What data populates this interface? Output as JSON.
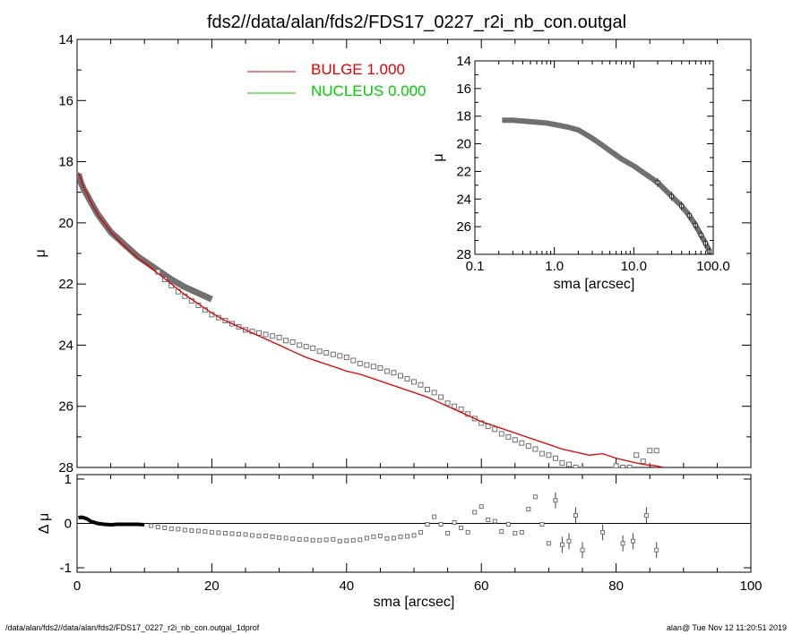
{
  "title": "fds2//data/alan/fds2/FDS17_0227_r2i_nb_con.outgal",
  "footer": {
    "left": "/data/alan/fds2//data/alan/fds2/FDS17_0227_r2i_nb_con.outgal_1dprof",
    "right": "alan@  Tue Nov 12 11:20:51 2019"
  },
  "colors": {
    "bulge": "#e00000",
    "nucleus": "#00cc00",
    "points": "#707070"
  },
  "chart_data": [
    {
      "id": "main",
      "type": "scatter",
      "xlabel": "",
      "ylabel": "μ",
      "xlim": [
        0,
        100
      ],
      "ylim": [
        28,
        14
      ],
      "x_ticks": [
        0,
        20,
        40,
        60,
        80,
        100
      ],
      "y_ticks": [
        14,
        16,
        18,
        20,
        22,
        24,
        26,
        28
      ],
      "y_tick_labels": [
        "14",
        "16",
        "18",
        "20",
        "22",
        "24",
        "26",
        "28"
      ],
      "legend": [
        {
          "name": "BULGE",
          "value": "1.000",
          "color": "#e00000"
        },
        {
          "name": "NUCLEUS",
          "value": "0.000",
          "color": "#00cc00"
        }
      ],
      "legend_position": "top-center",
      "series": [
        {
          "type": "line",
          "color": "#707070",
          "x": [
            0.2,
            0.6,
            1,
            1.5,
            2,
            3,
            4,
            5,
            6,
            7,
            8,
            9,
            10,
            12,
            14,
            16,
            18,
            20
          ],
          "y": [
            18.4,
            18.7,
            18.9,
            19.1,
            19.3,
            19.7,
            20.0,
            20.3,
            20.5,
            20.7,
            20.9,
            21.1,
            21.25,
            21.55,
            21.85,
            22.1,
            22.3,
            22.5
          ]
        },
        {
          "type": "points",
          "color": "#707070",
          "x": [
            12,
            13,
            14,
            15,
            16,
            17,
            18,
            19,
            20,
            21,
            22,
            23,
            24,
            25,
            26,
            27,
            28,
            29,
            30,
            31,
            32,
            33,
            34,
            35,
            36,
            37,
            38,
            39,
            40,
            41,
            42,
            43,
            44,
            45,
            46,
            47,
            48,
            49,
            50,
            51,
            52,
            53,
            54,
            55,
            56,
            57,
            58,
            59,
            60,
            61,
            62,
            63,
            64,
            65,
            66,
            67,
            68,
            69,
            70,
            71,
            72,
            73,
            74,
            75,
            76,
            77,
            78,
            79,
            80,
            81,
            82,
            83,
            84,
            85,
            86
          ],
          "y": [
            21.6,
            21.85,
            22.05,
            22.25,
            22.4,
            22.55,
            22.7,
            22.85,
            23.0,
            23.1,
            23.2,
            23.3,
            23.4,
            23.5,
            23.55,
            23.6,
            23.65,
            23.7,
            23.75,
            23.85,
            23.9,
            24.0,
            24.05,
            24.1,
            24.2,
            24.25,
            24.3,
            24.35,
            24.4,
            24.5,
            24.6,
            24.65,
            24.7,
            24.75,
            24.85,
            24.9,
            25.0,
            25.1,
            25.2,
            25.3,
            25.45,
            25.55,
            25.7,
            25.9,
            26.0,
            26.1,
            26.25,
            26.4,
            26.55,
            26.65,
            26.75,
            26.9,
            27.0,
            27.1,
            27.2,
            27.3,
            27.4,
            27.55,
            27.6,
            27.7,
            27.85,
            27.9,
            28.0,
            28.05,
            28.1,
            28.1,
            28.2,
            28.25,
            27.95,
            28.0,
            28.0,
            27.6,
            27.8,
            27.45,
            27.45
          ],
          "note_markers": true
        },
        {
          "name": "BULGE",
          "type": "line",
          "color": "#e00000",
          "x": [
            0.2,
            0.6,
            1,
            1.5,
            2,
            3,
            4,
            5,
            6,
            7,
            8,
            9,
            10,
            12,
            14,
            16,
            18,
            20,
            22,
            24,
            26,
            28,
            30,
            32,
            34,
            36,
            38,
            40,
            42,
            44,
            46,
            48,
            50,
            52,
            54,
            56,
            58,
            60,
            62,
            64,
            66,
            68,
            70,
            72,
            74,
            76,
            78,
            80,
            82,
            84,
            86,
            87
          ],
          "y": [
            18.35,
            18.6,
            18.85,
            19.05,
            19.3,
            19.7,
            20.0,
            20.3,
            20.55,
            20.75,
            20.95,
            21.15,
            21.3,
            21.65,
            22.0,
            22.35,
            22.65,
            22.95,
            23.2,
            23.4,
            23.6,
            23.8,
            24.0,
            24.2,
            24.4,
            24.55,
            24.7,
            24.85,
            24.95,
            25.1,
            25.25,
            25.4,
            25.55,
            25.7,
            25.9,
            26.1,
            26.3,
            26.5,
            26.65,
            26.8,
            26.95,
            27.1,
            27.25,
            27.4,
            27.5,
            27.6,
            27.55,
            27.7,
            27.8,
            27.9,
            27.95,
            28.0
          ]
        }
      ]
    },
    {
      "id": "inset",
      "type": "scatter",
      "xlabel": "sma [arcsec]",
      "ylabel": "μ",
      "xlim": [
        0.1,
        100.0
      ],
      "x_scale": "log",
      "ylim": [
        28,
        14
      ],
      "x_tick_labels": [
        "0.1",
        "1.0",
        "10.0",
        "100.0"
      ],
      "y_tick_labels": [
        "14",
        "16",
        "18",
        "20",
        "22",
        "24",
        "26",
        "28"
      ],
      "series": [
        {
          "type": "line",
          "color": "#707070",
          "x": [
            0.22,
            0.3,
            0.5,
            0.8,
            1.0,
            1.5,
            2.0,
            3.0,
            4.0,
            5.0,
            7.0,
            10.0,
            15.0,
            20.0,
            30.0,
            40.0,
            50.0,
            60.0,
            70.0,
            80.0,
            90.0
          ],
          "y": [
            18.3,
            18.3,
            18.4,
            18.5,
            18.6,
            18.8,
            19.0,
            19.6,
            20.1,
            20.5,
            21.1,
            21.6,
            22.3,
            22.8,
            23.8,
            24.5,
            25.2,
            25.9,
            26.6,
            27.2,
            27.8
          ]
        }
      ]
    },
    {
      "id": "residual",
      "type": "scatter",
      "xlabel": "sma [arcsec]",
      "ylabel": "Δ μ",
      "xlim": [
        0,
        100
      ],
      "ylim": [
        -1.0,
        1.0
      ],
      "x_tick_labels": [
        "0",
        "20",
        "40",
        "60",
        "80",
        "100"
      ],
      "y_tick_labels": [
        "1",
        "0",
        "-1"
      ],
      "zero_line": true,
      "series": [
        {
          "type": "line",
          "color": "#000000",
          "x": [
            0.2,
            0.6,
            1,
            1.5,
            2,
            3,
            4,
            5,
            6,
            7,
            8,
            9,
            10
          ],
          "y": [
            0.13,
            0.14,
            0.13,
            0.1,
            0.05,
            0.0,
            -0.02,
            -0.03,
            -0.02,
            -0.02,
            -0.02,
            -0.02,
            -0.03
          ]
        },
        {
          "type": "points",
          "color": "#707070",
          "x": [
            11,
            12,
            13,
            14,
            15,
            16,
            17,
            18,
            19,
            20,
            21,
            22,
            23,
            24,
            25,
            26,
            27,
            28,
            29,
            30,
            31,
            32,
            33,
            34,
            35,
            36,
            37,
            38,
            39,
            40,
            41,
            42,
            43,
            44,
            45,
            46,
            47,
            48,
            49,
            50,
            51,
            52,
            53,
            54,
            55,
            56,
            57,
            58,
            59,
            60,
            61,
            62,
            63,
            64,
            65,
            66,
            67,
            68,
            69,
            70,
            71,
            72,
            73,
            74,
            75,
            78,
            81,
            82.5,
            84.5,
            86
          ],
          "y": [
            -0.05,
            -0.08,
            -0.1,
            -0.12,
            -0.13,
            -0.15,
            -0.16,
            -0.17,
            -0.18,
            -0.2,
            -0.21,
            -0.22,
            -0.23,
            -0.24,
            -0.25,
            -0.27,
            -0.28,
            -0.28,
            -0.3,
            -0.32,
            -0.33,
            -0.35,
            -0.36,
            -0.36,
            -0.38,
            -0.38,
            -0.37,
            -0.36,
            -0.4,
            -0.39,
            -0.38,
            -0.37,
            -0.33,
            -0.3,
            -0.28,
            -0.34,
            -0.33,
            -0.3,
            -0.29,
            -0.27,
            -0.2,
            -0.02,
            0.15,
            -0.02,
            -0.22,
            0.02,
            -0.1,
            -0.2,
            0.25,
            0.38,
            0.08,
            0.05,
            -0.18,
            -0.02,
            -0.22,
            -0.2,
            0.32,
            0.6,
            -0.02,
            -0.45,
            0.52,
            -0.48,
            -0.4,
            0.18,
            -0.6,
            -0.2,
            -0.45,
            -0.4,
            0.18,
            -0.6
          ]
        }
      ]
    }
  ]
}
